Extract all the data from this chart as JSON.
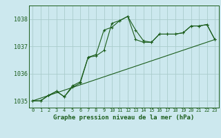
{
  "title": "Graphe pression niveau de la mer (hPa)",
  "background_color": "#cce8ee",
  "grid_color": "#aacccc",
  "line_color": "#1a5c1a",
  "xlim": [
    -0.5,
    23.5
  ],
  "ylim": [
    1034.75,
    1038.5
  ],
  "yticks": [
    1035,
    1036,
    1037,
    1038
  ],
  "xticks": [
    0,
    1,
    2,
    3,
    4,
    5,
    6,
    7,
    8,
    9,
    10,
    11,
    12,
    13,
    14,
    15,
    16,
    17,
    18,
    19,
    20,
    21,
    22,
    23
  ],
  "series1_x": [
    0,
    1,
    2,
    3,
    4,
    5,
    6,
    7,
    8,
    9,
    10,
    11,
    12,
    13,
    14,
    15,
    16,
    17,
    18,
    19,
    20,
    21,
    22,
    23
  ],
  "series1_y": [
    1035.0,
    1035.0,
    1035.2,
    1035.35,
    1035.15,
    1035.5,
    1035.65,
    1036.6,
    1036.65,
    1036.85,
    1037.85,
    1037.95,
    1038.1,
    1037.6,
    1037.2,
    1037.15,
    1037.45,
    1037.45,
    1037.45,
    1037.5,
    1037.75,
    1037.75,
    1037.8,
    1037.25
  ],
  "series2_x": [
    0,
    1,
    2,
    3,
    4,
    5,
    6,
    7,
    8,
    9,
    10,
    11,
    12,
    13,
    14,
    15,
    16,
    17,
    18,
    19,
    20,
    21,
    22,
    23
  ],
  "series2_y": [
    1035.0,
    1035.0,
    1035.2,
    1035.35,
    1035.15,
    1035.55,
    1035.7,
    1036.6,
    1036.7,
    1037.6,
    1037.7,
    1037.95,
    1038.1,
    1037.25,
    1037.15,
    1037.15,
    1037.45,
    1037.45,
    1037.45,
    1037.5,
    1037.75,
    1037.75,
    1037.8,
    1037.25
  ],
  "series3_x": [
    0,
    23
  ],
  "series3_y": [
    1035.0,
    1037.25
  ]
}
